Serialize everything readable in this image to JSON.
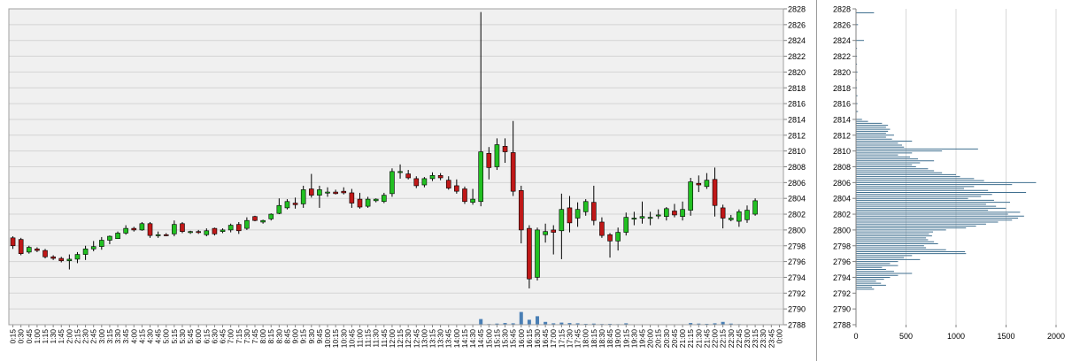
{
  "chart_data": [
    {
      "type": "candlestick",
      "title": "",
      "xlabel": "",
      "ylabel": "",
      "ylim": [
        2788,
        2828
      ],
      "grid": true,
      "colors": {
        "up": "#22c022",
        "down": "#c01818",
        "wick": "#000000",
        "volume": "#4a7fb5",
        "plot_background": "#f0f0f0",
        "grid": "#d4d4d4"
      },
      "y_ticks": [
        "2788",
        "2790",
        "2792",
        "2794",
        "2796",
        "2798",
        "2800",
        "2802",
        "2804",
        "2806",
        "2808",
        "2810",
        "2812",
        "2814",
        "2816",
        "2818",
        "2820",
        "2822",
        "2824",
        "2826",
        "2828"
      ],
      "x_ticks": [
        "0:15",
        "0:30",
        "0:45",
        "1:00",
        "1:15",
        "1:30",
        "1:45",
        "2:00",
        "2:15",
        "2:30",
        "2:45",
        "3:00",
        "3:15",
        "3:30",
        "3:45",
        "4:00",
        "4:15",
        "4:30",
        "4:45",
        "5:00",
        "5:15",
        "5:30",
        "5:45",
        "6:00",
        "6:15",
        "6:30",
        "6:45",
        "7:00",
        "7:15",
        "7:30",
        "7:45",
        "8:00",
        "8:15",
        "8:30",
        "8:45",
        "9:00",
        "9:15",
        "9:30",
        "9:45",
        "10:00",
        "10:15",
        "10:30",
        "10:45",
        "11:00",
        "11:15",
        "11:30",
        "11:45",
        "12:00",
        "12:15",
        "12:30",
        "12:45",
        "13:00",
        "13:15",
        "13:30",
        "13:45",
        "14:00",
        "14:15",
        "14:30",
        "14:45",
        "15:00",
        "15:15",
        "15:30",
        "15:45",
        "16:00",
        "16:15",
        "16:30",
        "16:45",
        "17:00",
        "17:15",
        "17:30",
        "17:45",
        "18:00",
        "18:15",
        "18:30",
        "18:45",
        "19:00",
        "19:15",
        "19:30",
        "19:45",
        "20:00",
        "20:15",
        "20:30",
        "20:45",
        "21:00",
        "21:15",
        "21:30",
        "21:45",
        "22:00",
        "22:15",
        "22:30",
        "22:45",
        "23:00",
        "23:15",
        "23:30",
        "23:45",
        "0:00"
      ],
      "candles": [
        {
          "t": "0:15",
          "o": 2799,
          "h": 2799.2,
          "l": 2797.6,
          "c": 2798
        },
        {
          "t": "0:30",
          "o": 2798.8,
          "h": 2799,
          "l": 2796.8,
          "c": 2797
        },
        {
          "t": "0:45",
          "o": 2797.2,
          "h": 2798,
          "l": 2797,
          "c": 2797.8
        },
        {
          "t": "1:00",
          "o": 2797.6,
          "h": 2797.8,
          "l": 2797.2,
          "c": 2797.4
        },
        {
          "t": "1:15",
          "o": 2797.4,
          "h": 2797.6,
          "l": 2796.4,
          "c": 2796.6
        },
        {
          "t": "1:30",
          "o": 2796.6,
          "h": 2796.8,
          "l": 2796.2,
          "c": 2796.4
        },
        {
          "t": "1:45",
          "o": 2796.4,
          "h": 2796.6,
          "l": 2795.9,
          "c": 2796.1
        },
        {
          "t": "2:00",
          "o": 2796.1,
          "h": 2796.9,
          "l": 2795,
          "c": 2796.3
        },
        {
          "t": "2:15",
          "o": 2796.3,
          "h": 2797.2,
          "l": 2795.8,
          "c": 2796.9
        },
        {
          "t": "2:30",
          "o": 2796.9,
          "h": 2798,
          "l": 2796.2,
          "c": 2797.6
        },
        {
          "t": "2:45",
          "o": 2797.6,
          "h": 2798.6,
          "l": 2797.3,
          "c": 2797.9
        },
        {
          "t": "3:00",
          "o": 2797.9,
          "h": 2799.1,
          "l": 2797.5,
          "c": 2798.7
        },
        {
          "t": "3:15",
          "o": 2798.7,
          "h": 2799.3,
          "l": 2798.2,
          "c": 2799.2
        },
        {
          "t": "3:30",
          "o": 2798.9,
          "h": 2799.8,
          "l": 2798.9,
          "c": 2799.6
        },
        {
          "t": "3:45",
          "o": 2799.6,
          "h": 2800.6,
          "l": 2799.4,
          "c": 2800.2
        },
        {
          "t": "4:00",
          "o": 2800.2,
          "h": 2800.4,
          "l": 2799.8,
          "c": 2800.0
        },
        {
          "t": "4:15",
          "o": 2800,
          "h": 2801,
          "l": 2799.9,
          "c": 2800.8
        },
        {
          "t": "4:30",
          "o": 2800.8,
          "h": 2801,
          "l": 2799,
          "c": 2799.3
        },
        {
          "t": "4:45",
          "o": 2799.3,
          "h": 2799.8,
          "l": 2799,
          "c": 2799.4
        },
        {
          "t": "5:00",
          "o": 2799.4,
          "h": 2799.6,
          "l": 2799.2,
          "c": 2799.3
        },
        {
          "t": "5:15",
          "o": 2799.5,
          "h": 2801.2,
          "l": 2799.2,
          "c": 2800.7
        },
        {
          "t": "5:30",
          "o": 2800.8,
          "h": 2801,
          "l": 2799.6,
          "c": 2799.8
        },
        {
          "t": "5:45",
          "o": 2799.7,
          "h": 2799.9,
          "l": 2799.5,
          "c": 2799.8
        },
        {
          "t": "6:00",
          "o": 2799.8,
          "h": 2800,
          "l": 2799.5,
          "c": 2799.7
        },
        {
          "t": "6:15",
          "o": 2799.4,
          "h": 2800.2,
          "l": 2799.2,
          "c": 2799.9
        },
        {
          "t": "6:30",
          "o": 2800.2,
          "h": 2800.3,
          "l": 2799.3,
          "c": 2799.5
        },
        {
          "t": "6:45",
          "o": 2799.8,
          "h": 2800.2,
          "l": 2799.6,
          "c": 2800
        },
        {
          "t": "7:00",
          "o": 2800,
          "h": 2800.8,
          "l": 2799.7,
          "c": 2800.6
        },
        {
          "t": "7:15",
          "o": 2800.7,
          "h": 2801,
          "l": 2799.5,
          "c": 2799.9
        },
        {
          "t": "7:30",
          "o": 2800.2,
          "h": 2801.6,
          "l": 2800,
          "c": 2801.2
        },
        {
          "t": "7:45",
          "o": 2801.7,
          "h": 2801.8,
          "l": 2801.1,
          "c": 2801.2
        },
        {
          "t": "8:00",
          "o": 2801,
          "h": 2801.3,
          "l": 2800.8,
          "c": 2801.2
        },
        {
          "t": "8:15",
          "o": 2801.4,
          "h": 2802.1,
          "l": 2801.2,
          "c": 2802
        },
        {
          "t": "8:30",
          "o": 2802.1,
          "h": 2804,
          "l": 2802,
          "c": 2803.1
        },
        {
          "t": "8:45",
          "o": 2802.8,
          "h": 2803.9,
          "l": 2802.6,
          "c": 2803.6
        },
        {
          "t": "9:00",
          "o": 2803.4,
          "h": 2804.1,
          "l": 2802.7,
          "c": 2803.2
        },
        {
          "t": "9:15",
          "o": 2803.3,
          "h": 2805.6,
          "l": 2802.8,
          "c": 2805.1
        },
        {
          "t": "9:30",
          "o": 2805.2,
          "h": 2807.1,
          "l": 2804.1,
          "c": 2804.4
        },
        {
          "t": "9:45",
          "o": 2804.4,
          "h": 2805.6,
          "l": 2802.8,
          "c": 2805.1
        },
        {
          "t": "10:00",
          "o": 2804.8,
          "h": 2805.4,
          "l": 2804.2,
          "c": 2804.8
        },
        {
          "t": "10:15",
          "o": 2804.8,
          "h": 2805.1,
          "l": 2804.5,
          "c": 2804.6
        },
        {
          "t": "10:30",
          "o": 2804.9,
          "h": 2805.4,
          "l": 2804.5,
          "c": 2804.7
        },
        {
          "t": "10:45",
          "o": 2804.7,
          "h": 2805.2,
          "l": 2802.8,
          "c": 2803.4
        },
        {
          "t": "11:00",
          "o": 2803.9,
          "h": 2804.7,
          "l": 2802.7,
          "c": 2802.9
        },
        {
          "t": "11:15",
          "o": 2803,
          "h": 2804.2,
          "l": 2802.8,
          "c": 2803.9
        },
        {
          "t": "11:30",
          "o": 2803.7,
          "h": 2804,
          "l": 2803.5,
          "c": 2803.9
        },
        {
          "t": "11:45",
          "o": 2803.6,
          "h": 2804.7,
          "l": 2803.4,
          "c": 2804.4
        },
        {
          "t": "12:00",
          "o": 2804.6,
          "h": 2807.8,
          "l": 2804.2,
          "c": 2807.4
        },
        {
          "t": "12:15",
          "o": 2807.3,
          "h": 2808.3,
          "l": 2806.5,
          "c": 2807.4
        },
        {
          "t": "12:30",
          "o": 2807.1,
          "h": 2807.6,
          "l": 2806.4,
          "c": 2806.6
        },
        {
          "t": "12:45",
          "o": 2806.5,
          "h": 2806.8,
          "l": 2805.3,
          "c": 2805.6
        },
        {
          "t": "13:00",
          "o": 2805.7,
          "h": 2806.7,
          "l": 2805.4,
          "c": 2806.5
        },
        {
          "t": "13:15",
          "o": 2806.5,
          "h": 2807.3,
          "l": 2806.2,
          "c": 2806.9
        },
        {
          "t": "13:30",
          "o": 2806.9,
          "h": 2807.2,
          "l": 2806.3,
          "c": 2806.6
        },
        {
          "t": "13:45",
          "o": 2806.3,
          "h": 2806.8,
          "l": 2805.1,
          "c": 2805.3
        },
        {
          "t": "14:00",
          "o": 2805.6,
          "h": 2806.4,
          "l": 2804.6,
          "c": 2804.9
        },
        {
          "t": "14:15",
          "o": 2805.2,
          "h": 2805.5,
          "l": 2803.3,
          "c": 2803.6
        },
        {
          "t": "14:30",
          "o": 2803.5,
          "h": 2805.2,
          "l": 2803.2,
          "c": 2803.9
        },
        {
          "t": "14:45",
          "o": 2803.6,
          "h": 2827.6,
          "l": 2803,
          "c": 2809.9
        },
        {
          "t": "15:00",
          "o": 2809.7,
          "h": 2810.5,
          "l": 2806.4,
          "c": 2807.9
        },
        {
          "t": "15:15",
          "o": 2808,
          "h": 2811.6,
          "l": 2807.6,
          "c": 2810.8
        },
        {
          "t": "15:30",
          "o": 2810.6,
          "h": 2811.6,
          "l": 2808.5,
          "c": 2809.9
        },
        {
          "t": "15:45",
          "o": 2809.8,
          "h": 2813.8,
          "l": 2804.3,
          "c": 2804.9
        },
        {
          "t": "16:00",
          "o": 2805,
          "h": 2805.6,
          "l": 2798.3,
          "c": 2800
        },
        {
          "t": "16:15",
          "o": 2800.2,
          "h": 2800.6,
          "l": 2792.6,
          "c": 2793.8
        },
        {
          "t": "16:30",
          "o": 2794,
          "h": 2800.3,
          "l": 2793.6,
          "c": 2800
        },
        {
          "t": "16:45",
          "o": 2799.4,
          "h": 2800.8,
          "l": 2798.4,
          "c": 2799.8
        },
        {
          "t": "17:00",
          "o": 2800,
          "h": 2800.6,
          "l": 2796.9,
          "c": 2799.7
        },
        {
          "t": "17:15",
          "o": 2799.9,
          "h": 2804.6,
          "l": 2796.3,
          "c": 2802.6
        },
        {
          "t": "17:30",
          "o": 2802.8,
          "h": 2804.3,
          "l": 2799.7,
          "c": 2800.9
        },
        {
          "t": "17:45",
          "o": 2801.5,
          "h": 2803.5,
          "l": 2800.4,
          "c": 2802.6
        },
        {
          "t": "18:00",
          "o": 2802.3,
          "h": 2803.9,
          "l": 2801.8,
          "c": 2803.6
        },
        {
          "t": "18:15",
          "o": 2803.5,
          "h": 2805.6,
          "l": 2800.6,
          "c": 2801.2
        },
        {
          "t": "18:30",
          "o": 2801,
          "h": 2801.6,
          "l": 2799,
          "c": 2799.3
        },
        {
          "t": "18:45",
          "o": 2799.4,
          "h": 2799.6,
          "l": 2796.5,
          "c": 2798.6
        },
        {
          "t": "19:00",
          "o": 2798.6,
          "h": 2800.3,
          "l": 2797.4,
          "c": 2799.7
        },
        {
          "t": "19:15",
          "o": 2799.7,
          "h": 2802.2,
          "l": 2799.3,
          "c": 2801.6
        },
        {
          "t": "19:30",
          "o": 2801.4,
          "h": 2802.3,
          "l": 2800.6,
          "c": 2801.5
        },
        {
          "t": "19:45",
          "o": 2801.5,
          "h": 2803.6,
          "l": 2800.8,
          "c": 2801.7
        },
        {
          "t": "20:00",
          "o": 2801.5,
          "h": 2802.3,
          "l": 2800.6,
          "c": 2801.6
        },
        {
          "t": "20:15",
          "o": 2801.9,
          "h": 2802.6,
          "l": 2801.4,
          "c": 2801.9
        },
        {
          "t": "20:30",
          "o": 2801.7,
          "h": 2802.9,
          "l": 2801.2,
          "c": 2802.7
        },
        {
          "t": "20:45",
          "o": 2802.4,
          "h": 2803.3,
          "l": 2801.6,
          "c": 2801.9
        },
        {
          "t": "21:00",
          "o": 2801.7,
          "h": 2803.6,
          "l": 2801.2,
          "c": 2802.6
        },
        {
          "t": "21:15",
          "o": 2802.5,
          "h": 2806.6,
          "l": 2801.8,
          "c": 2806.1
        },
        {
          "t": "21:30",
          "o": 2805.9,
          "h": 2806.9,
          "l": 2804.8,
          "c": 2805.7
        },
        {
          "t": "21:45",
          "o": 2805.5,
          "h": 2807.2,
          "l": 2805.2,
          "c": 2806.3
        },
        {
          "t": "22:00",
          "o": 2806.4,
          "h": 2807.9,
          "l": 2801.7,
          "c": 2803.1
        },
        {
          "t": "22:15",
          "o": 2802.8,
          "h": 2803.2,
          "l": 2800.2,
          "c": 2801.5
        },
        {
          "t": "22:30",
          "o": 2801.3,
          "h": 2801.9,
          "l": 2801.1,
          "c": 2801.5
        },
        {
          "t": "22:45",
          "o": 2801.1,
          "h": 2802.6,
          "l": 2800.4,
          "c": 2802.3
        },
        {
          "t": "23:00",
          "o": 2801.3,
          "h": 2803.1,
          "l": 2800.9,
          "c": 2802.5
        },
        {
          "t": "23:15",
          "o": 2802,
          "h": 2804,
          "l": 2801.8,
          "c": 2803.7
        }
      ],
      "volume": {
        "max_reference": 100,
        "values": [
          0,
          0,
          0,
          0,
          0,
          0,
          0,
          0,
          0,
          0,
          0,
          0,
          0,
          0,
          0,
          0,
          0,
          0,
          0,
          0,
          0,
          0,
          0,
          0,
          0,
          0,
          0,
          0,
          0,
          0,
          0,
          0,
          0,
          0,
          0,
          0,
          0,
          0,
          0,
          0,
          0,
          0,
          0,
          0,
          0,
          0,
          0,
          0,
          0,
          0,
          0,
          0,
          0,
          0,
          0,
          0,
          0,
          0,
          40,
          5,
          8,
          12,
          10,
          90,
          35,
          60,
          20,
          10,
          15,
          12,
          10,
          6,
          8,
          5,
          6,
          4,
          10,
          3,
          2,
          0,
          0,
          0,
          0,
          0,
          12,
          8,
          6,
          10,
          20,
          8,
          4,
          0,
          0,
          0,
          0,
          0
        ]
      }
    },
    {
      "type": "bar",
      "orientation": "horizontal",
      "title": "",
      "xlabel": "",
      "ylabel": "",
      "xlim": [
        0,
        2000
      ],
      "ylim": [
        2788,
        2828
      ],
      "grid": true,
      "colors": {
        "bar": "#3f6f8f"
      },
      "x_ticks": [
        "0",
        "500",
        "1000",
        "1500",
        "2000"
      ],
      "y_ticks": [
        "2788",
        "2790",
        "2792",
        "2794",
        "2796",
        "2798",
        "2800",
        "2802",
        "2804",
        "2806",
        "2808",
        "2810",
        "2812",
        "2814",
        "2816",
        "2818",
        "2820",
        "2822",
        "2824",
        "2826",
        "2828"
      ],
      "price_levels": [
        2792.5,
        2792.75,
        2793,
        2793.25,
        2793.5,
        2793.75,
        2794,
        2794.25,
        2794.5,
        2794.75,
        2795,
        2795.25,
        2795.5,
        2795.75,
        2796,
        2796.25,
        2796.5,
        2796.75,
        2797,
        2797.25,
        2797.5,
        2797.75,
        2798,
        2798.25,
        2798.5,
        2798.75,
        2799,
        2799.25,
        2799.5,
        2799.75,
        2800,
        2800.25,
        2800.5,
        2800.75,
        2801,
        2801.25,
        2801.5,
        2801.75,
        2802,
        2802.25,
        2802.5,
        2802.75,
        2803,
        2803.25,
        2803.5,
        2803.75,
        2804,
        2804.25,
        2804.5,
        2804.75,
        2805,
        2805.25,
        2805.5,
        2805.75,
        2806,
        2806.25,
        2806.5,
        2806.75,
        2807,
        2807.25,
        2807.5,
        2807.75,
        2808,
        2808.25,
        2808.5,
        2808.75,
        2809,
        2809.25,
        2809.5,
        2809.75,
        2810,
        2810.25,
        2810.5,
        2810.75,
        2811,
        2811.25,
        2811.5,
        2811.75,
        2812,
        2812.25,
        2812.5,
        2812.75,
        2813,
        2813.25,
        2813.5,
        2813.75,
        2814,
        2815,
        2816,
        2817,
        2818,
        2819,
        2820,
        2821,
        2822,
        2823,
        2824,
        2826,
        2827.5
      ],
      "volumes": [
        180,
        160,
        300,
        250,
        200,
        280,
        340,
        420,
        560,
        380,
        300,
        260,
        420,
        340,
        420,
        640,
        480,
        560,
        1100,
        1090,
        900,
        700,
        680,
        820,
        780,
        720,
        700,
        760,
        730,
        770,
        900,
        1100,
        1200,
        1300,
        1420,
        1560,
        1620,
        1680,
        1520,
        1640,
        1320,
        1500,
        1400,
        1300,
        1540,
        1380,
        1120,
        1250,
        1360,
        1700,
        1320,
        1080,
        1180,
        1560,
        1800,
        1280,
        1180,
        1040,
        1000,
        860,
        780,
        720,
        600,
        560,
        640,
        780,
        620,
        540,
        420,
        560,
        860,
        1220,
        480,
        460,
        420,
        560,
        360,
        300,
        380,
        300,
        320,
        340,
        300,
        320,
        260,
        120,
        60,
        20,
        15,
        15,
        10,
        10,
        15,
        10,
        10,
        10,
        80,
        20,
        180
      ]
    }
  ]
}
